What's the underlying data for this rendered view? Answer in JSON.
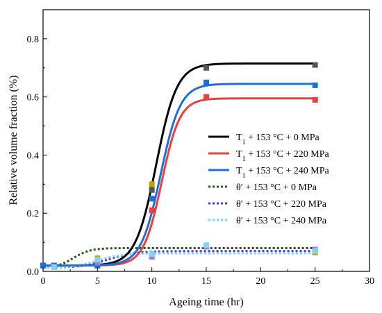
{
  "chart_data": {
    "type": "line",
    "xlabel": "Ageing time (hr)",
    "ylabel": "Relative volume fraction (%)",
    "xlim": [
      0,
      30
    ],
    "ylim": [
      0,
      0.9
    ],
    "x_ticks": [
      0,
      5,
      10,
      15,
      20,
      25,
      30
    ],
    "y_ticks": [
      0.0,
      0.2,
      0.4,
      0.6,
      0.8
    ],
    "x_tick_labels": [
      "0",
      "5",
      "10",
      "15",
      "20",
      "25",
      "30"
    ],
    "y_tick_labels": [
      "0.0",
      "0.2",
      "0.4",
      "0.6",
      "0.8"
    ],
    "grid": false,
    "legend_position": "right-middle",
    "series": [
      {
        "name": "T1 + 153 °C + 0 MPa",
        "legend_main": "T",
        "legend_sub": "1",
        "legend_rest": " + 153 °C + 0 MPa",
        "color": "#000000",
        "marker_color": "#555555",
        "style": "solid",
        "fit": {
          "base": 0.02,
          "top": 0.715,
          "t0": 10.4,
          "k": 1.05
        },
        "points": [
          [
            0,
            0.02
          ],
          [
            1,
            0.02
          ],
          [
            5,
            0.02
          ],
          [
            10,
            0.28
          ],
          [
            15,
            0.7
          ],
          [
            25,
            0.71
          ]
        ]
      },
      {
        "name": "T1 + 153 °C + 220 MPa",
        "legend_main": "T",
        "legend_sub": "1",
        "legend_rest": " + 153 °C + 220 MPa",
        "color": "#e8403f",
        "marker_color": "#e8403f",
        "style": "solid",
        "fit": {
          "base": 0.02,
          "top": 0.595,
          "t0": 10.9,
          "k": 1.2
        },
        "points": [
          [
            0,
            0.02
          ],
          [
            1,
            0.02
          ],
          [
            5,
            0.02
          ],
          [
            10,
            0.21
          ],
          [
            15,
            0.6
          ],
          [
            25,
            0.59
          ]
        ]
      },
      {
        "name": "T1 + 153 °C + 240 MPa",
        "legend_main": "T",
        "legend_sub": "1",
        "legend_rest": " + 153 °C + 240 MPa",
        "color": "#1f6fd6",
        "marker_color": "#1f6fd6",
        "style": "solid",
        "fit": {
          "base": 0.02,
          "top": 0.645,
          "t0": 10.8,
          "k": 1.1
        },
        "points": [
          [
            0,
            0.02
          ],
          [
            1,
            0.02
          ],
          [
            5,
            0.02
          ],
          [
            10,
            0.25
          ],
          [
            15,
            0.65
          ],
          [
            25,
            0.64
          ]
        ]
      },
      {
        "name": "θ′ + 153 °C + 0 MPa",
        "legend_main": "θ′ + 153 °C + 0 MPa",
        "legend_sub": "",
        "legend_rest": "",
        "color": "#1f5a12",
        "marker_color": "#b5a800",
        "style": "dotted",
        "fit": {
          "base": 0.012,
          "top": 0.08,
          "t0": 2.8,
          "k": 1.3
        },
        "points": [
          [
            1,
            0.015
          ],
          [
            5,
            0.045
          ],
          [
            10,
            0.3
          ],
          [
            15,
            0.085
          ],
          [
            25,
            0.065
          ]
        ]
      },
      {
        "name": "θ′ + 153 °C + 220 MPa",
        "legend_main": "θ′ + 153 °C + 220 MPa",
        "legend_sub": "",
        "legend_rest": "",
        "color": "#5a2fd0",
        "marker_color": "#9b7fd9",
        "style": "dotted",
        "fit": {
          "base": 0.012,
          "top": 0.07,
          "t0": 6.0,
          "k": 0.8
        },
        "points": [
          [
            1,
            0.015
          ],
          [
            5,
            0.03
          ],
          [
            10,
            0.05
          ],
          [
            15,
            0.085
          ],
          [
            25,
            0.075
          ]
        ]
      },
      {
        "name": "θ′ + 153 °C + 240 MPa",
        "legend_main": "θ′ + 153 °C + 240 MPa",
        "legend_sub": "",
        "legend_rest": "",
        "color": "#7fd3ff",
        "marker_color": "#7fd3ff",
        "style": "dotted",
        "fit": {
          "base": 0.012,
          "top": 0.062,
          "t0": 5.0,
          "k": 0.9
        },
        "points": [
          [
            1,
            0.015
          ],
          [
            5,
            0.04
          ],
          [
            10,
            0.06
          ],
          [
            15,
            0.09
          ],
          [
            25,
            0.07
          ]
        ]
      }
    ]
  }
}
